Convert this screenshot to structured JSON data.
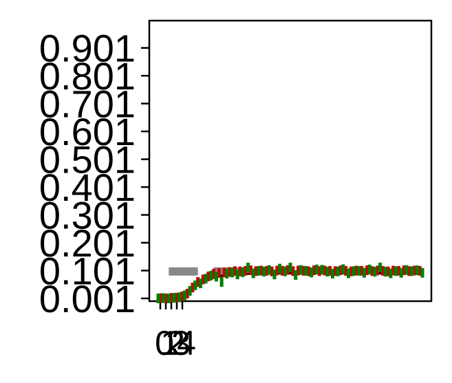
{
  "chart_data": {
    "type": "scatter",
    "title": "",
    "xlabel": "",
    "ylabel": "",
    "xlim": [
      0,
      100
    ],
    "ylim": [
      -0.009,
      0.999
    ],
    "grid": false,
    "legend": "none",
    "y_ticks": [
      0.001,
      0.101,
      0.201,
      0.301,
      0.401,
      0.501,
      0.601,
      0.701,
      0.801,
      0.901
    ],
    "y_tick_labels": [
      "0.001",
      "0.101",
      "0.201",
      "0.301",
      "0.401",
      "0.501",
      "0.601",
      "0.701",
      "0.801",
      "0.901"
    ],
    "x_ticks": [
      0,
      1,
      2,
      3,
      4
    ],
    "x_tick_labels": [
      "0",
      "1",
      "2",
      "3",
      "4"
    ],
    "colors": {
      "data": "#008000",
      "data_alt": "#cc0000",
      "fit": "#000000",
      "reference": "#888888"
    },
    "series": [
      {
        "x": [
          0,
          2,
          4,
          6,
          8,
          10,
          12,
          14,
          16,
          18,
          20,
          22,
          24,
          26,
          28,
          30,
          32,
          34,
          36,
          38,
          40,
          42,
          44,
          46,
          48,
          50,
          52,
          54,
          56,
          58,
          60,
          62,
          64,
          66,
          68,
          70,
          72,
          74,
          76,
          78,
          80,
          82,
          84,
          86,
          88,
          90,
          92,
          94,
          96,
          98,
          100
        ],
        "y": [
          0.001,
          0.002,
          0.001,
          0.003,
          0.005,
          0.012,
          0.028,
          0.048,
          0.055,
          0.072,
          0.083,
          0.079,
          0.06,
          0.09,
          0.094,
          0.087,
          0.095,
          0.112,
          0.091,
          0.1,
          0.097,
          0.103,
          0.087,
          0.108,
          0.098,
          0.112,
          0.085,
          0.103,
          0.1,
          0.094,
          0.105,
          0.104,
          0.097,
          0.09,
          0.098,
          0.106,
          0.091,
          0.099,
          0.1,
          0.093,
          0.105,
          0.097,
          0.112,
          0.097,
          0.091,
          0.099,
          0.093,
          0.103,
          0.099,
          0.102,
          0.093
        ]
      },
      {
        "x": [
          1,
          3,
          5,
          7,
          9,
          11,
          13,
          15,
          17,
          19,
          21,
          23,
          25,
          27,
          29,
          31,
          33,
          35,
          37,
          39,
          41,
          43,
          45,
          47,
          49,
          51,
          53,
          55,
          57,
          59,
          61,
          63,
          65,
          67,
          69,
          71,
          73,
          75,
          77,
          79,
          81,
          83,
          85,
          87,
          89,
          91,
          93,
          95,
          97,
          99
        ],
        "y": [
          0.002,
          0.001,
          0.003,
          0.004,
          0.008,
          0.018,
          0.04,
          0.06,
          0.069,
          0.08,
          0.09,
          0.092,
          0.094,
          0.096,
          0.099,
          0.098,
          0.1,
          0.102,
          0.099,
          0.101,
          0.1,
          0.098,
          0.101,
          0.1,
          0.103,
          0.099,
          0.101,
          0.1,
          0.098,
          0.102,
          0.099,
          0.101,
          0.1,
          0.099,
          0.102,
          0.1,
          0.098,
          0.101,
          0.1,
          0.102,
          0.099,
          0.101,
          0.1,
          0.098,
          0.101,
          0.1,
          0.102,
          0.099,
          0.101,
          0.1
        ]
      },
      {
        "x": [
          0,
          3,
          6,
          9,
          12,
          15,
          18,
          21,
          24,
          27,
          30,
          35,
          40,
          45,
          50,
          55,
          60,
          65,
          70,
          75,
          80,
          85,
          90,
          95,
          100
        ],
        "y": [
          0.001,
          0.002,
          0.005,
          0.013,
          0.028,
          0.048,
          0.064,
          0.075,
          0.082,
          0.086,
          0.088,
          0.09,
          0.091,
          0.091,
          0.091,
          0.091,
          0.091,
          0.091,
          0.091,
          0.091,
          0.091,
          0.091,
          0.091,
          0.091,
          0.091
        ]
      },
      {
        "x": [
          4,
          15,
          21,
          33
        ],
        "y": [
          0.098,
          0.098,
          0.098,
          0.098
        ]
      }
    ]
  }
}
